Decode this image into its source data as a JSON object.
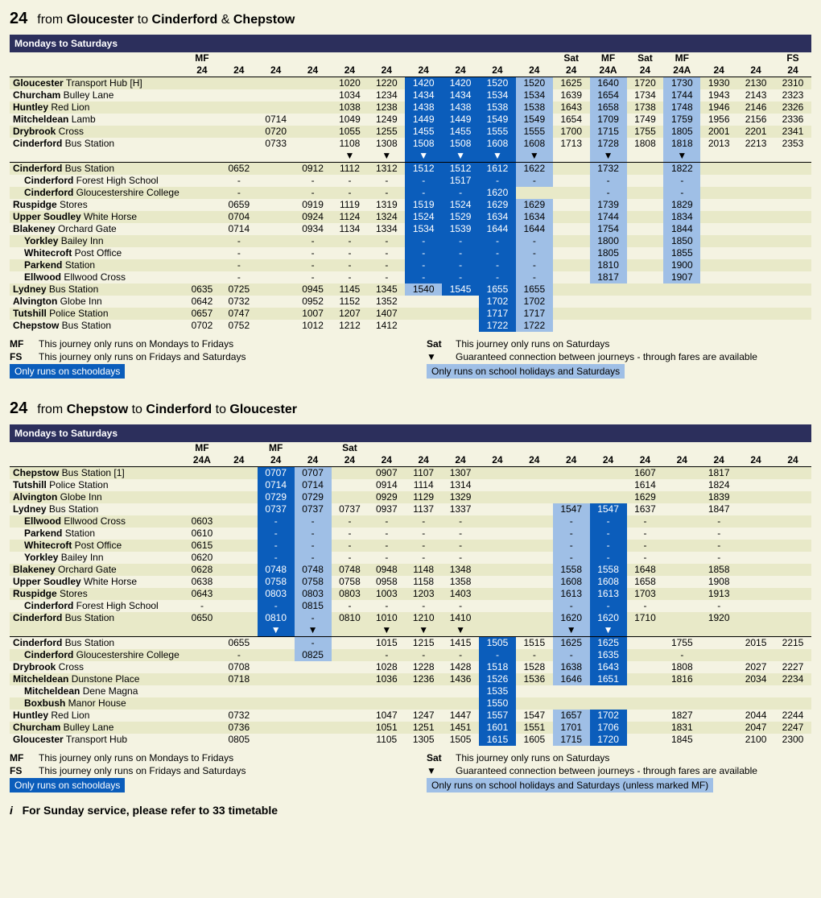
{
  "colors": {
    "bg": "#f4f3e2",
    "banner": "#2c2f5c",
    "stripe": "#e8e9c8",
    "school": "#0b5dbb",
    "hol": "#9fbfe6"
  },
  "section1": {
    "route": "24",
    "title_parts": [
      "from ",
      "Gloucester",
      " to ",
      "Cinderford",
      " & ",
      "Chepstow"
    ],
    "banner": "Mondays to Saturdays",
    "ncols": 17,
    "header_note": [
      "MF",
      "",
      "",
      "",
      "",
      "",
      "",
      "",
      "",
      "",
      "Sat",
      "MF",
      "Sat",
      "MF",
      "",
      "",
      "FS"
    ],
    "header_svc": [
      "24",
      "24",
      "24",
      "24",
      "24",
      "24",
      "24",
      "24",
      "24",
      "24",
      "24",
      "24A",
      "24",
      "24A",
      "24",
      "24",
      "24"
    ],
    "hl_cols": {
      "school": [
        6,
        7,
        8
      ],
      "hol": [
        9,
        11,
        13
      ]
    },
    "rows": [
      {
        "stop": [
          "Gloucester",
          " Transport Hub [H]"
        ],
        "t": [
          "",
          "",
          "",
          "",
          "1020",
          "1220",
          "1420",
          "1420",
          "1520",
          "1520",
          "1625",
          "1640",
          "1720",
          "1730",
          "1930",
          "2130",
          "2310"
        ]
      },
      {
        "stop": [
          "Churcham",
          " Bulley Lane"
        ],
        "t": [
          "",
          "",
          "",
          "",
          "1034",
          "1234",
          "1434",
          "1434",
          "1534",
          "1534",
          "1639",
          "1654",
          "1734",
          "1744",
          "1943",
          "2143",
          "2323"
        ]
      },
      {
        "stop": [
          "Huntley",
          " Red Lion"
        ],
        "t": [
          "",
          "",
          "",
          "",
          "1038",
          "1238",
          "1438",
          "1438",
          "1538",
          "1538",
          "1643",
          "1658",
          "1738",
          "1748",
          "1946",
          "2146",
          "2326"
        ]
      },
      {
        "stop": [
          "Mitcheldean",
          " Lamb"
        ],
        "t": [
          "",
          "",
          "0714",
          "",
          "1049",
          "1249",
          "1449",
          "1449",
          "1549",
          "1549",
          "1654",
          "1709",
          "1749",
          "1759",
          "1956",
          "2156",
          "2336"
        ]
      },
      {
        "stop": [
          "Drybrook",
          " Cross"
        ],
        "t": [
          "",
          "",
          "0720",
          "",
          "1055",
          "1255",
          "1455",
          "1455",
          "1555",
          "1555",
          "1700",
          "1715",
          "1755",
          "1805",
          "2001",
          "2201",
          "2341"
        ]
      },
      {
        "stop": [
          "Cinderford",
          " Bus Station"
        ],
        "t": [
          "",
          "",
          "0733",
          "",
          "1108",
          "1308",
          "1508",
          "1508",
          "1608",
          "1608",
          "1713",
          "1728",
          "1808",
          "1818",
          "2013",
          "2213",
          "2353"
        ]
      },
      {
        "arrows": true,
        "cols": [
          4,
          5,
          6,
          7,
          8,
          9,
          11,
          13
        ]
      },
      {
        "hr": true
      },
      {
        "stop": [
          "Cinderford",
          " Bus Station"
        ],
        "t": [
          "",
          "0652",
          "",
          "0912",
          "1112",
          "1312",
          "1512",
          "1512",
          "1612",
          "1622",
          "",
          "1732",
          "",
          "1822",
          "",
          "",
          ""
        ]
      },
      {
        "stop": [
          "Cinderford",
          " Forest High School"
        ],
        "indent": 1,
        "t": [
          "",
          "-",
          "",
          "-",
          "-",
          "-",
          "-",
          "1517",
          "-",
          "-",
          "",
          "-",
          "",
          "-",
          "",
          "",
          ""
        ]
      },
      {
        "stop": [
          "Cinderford",
          " Gloucestershire College"
        ],
        "indent": 1,
        "t": [
          "",
          "-",
          "",
          "-",
          "-",
          "-",
          "-",
          "-",
          "1620",
          "",
          "",
          "-",
          "",
          "-",
          "",
          "",
          ""
        ]
      },
      {
        "stop": [
          "Ruspidge",
          " Stores"
        ],
        "t": [
          "",
          "0659",
          "",
          "0919",
          "1119",
          "1319",
          "1519",
          "1524",
          "1629",
          "1629",
          "",
          "1739",
          "",
          "1829",
          "",
          "",
          ""
        ]
      },
      {
        "stop": [
          "Upper Soudley",
          " White Horse"
        ],
        "t": [
          "",
          "0704",
          "",
          "0924",
          "1124",
          "1324",
          "1524",
          "1529",
          "1634",
          "1634",
          "",
          "1744",
          "",
          "1834",
          "",
          "",
          ""
        ]
      },
      {
        "stop": [
          "Blakeney",
          " Orchard Gate"
        ],
        "t": [
          "",
          "0714",
          "",
          "0934",
          "1134",
          "1334",
          "1534",
          "1539",
          "1644",
          "1644",
          "",
          "1754",
          "",
          "1844",
          "",
          "",
          ""
        ]
      },
      {
        "stop": [
          "Yorkley",
          " Bailey Inn"
        ],
        "indent": 1,
        "t": [
          "",
          "-",
          "",
          "-",
          "-",
          "-",
          "-",
          "-",
          "-",
          "-",
          "",
          "1800",
          "",
          "1850",
          "",
          "",
          ""
        ]
      },
      {
        "stop": [
          "Whitecroft",
          " Post Office"
        ],
        "indent": 1,
        "t": [
          "",
          "-",
          "",
          "-",
          "-",
          "-",
          "-",
          "-",
          "-",
          "-",
          "",
          "1805",
          "",
          "1855",
          "",
          "",
          ""
        ]
      },
      {
        "stop": [
          "Parkend",
          " Station"
        ],
        "indent": 1,
        "t": [
          "",
          "-",
          "",
          "-",
          "-",
          "-",
          "-",
          "-",
          "-",
          "-",
          "",
          "1810",
          "",
          "1900",
          "",
          "",
          ""
        ]
      },
      {
        "stop": [
          "Ellwood",
          " Ellwood Cross"
        ],
        "indent": 1,
        "t": [
          "",
          "-",
          "",
          "-",
          "-",
          "-",
          "-",
          "-",
          "-",
          "-",
          "",
          "1817",
          "",
          "1907",
          "",
          "",
          ""
        ]
      },
      {
        "stop": [
          "Lydney",
          " Bus Station"
        ],
        "t": [
          "0635",
          "0725",
          "",
          "0945",
          "1145",
          "1345",
          "1540",
          "1545",
          "1655",
          "1655",
          "",
          "",
          "",
          "",
          "",
          "",
          ""
        ],
        "hl_override": {
          "6": "hol"
        }
      },
      {
        "stop": [
          "Alvington",
          " Globe Inn"
        ],
        "t": [
          "0642",
          "0732",
          "",
          "0952",
          "1152",
          "1352",
          "",
          "",
          "1702",
          "1702",
          "",
          "",
          "",
          "",
          "",
          "",
          ""
        ]
      },
      {
        "stop": [
          "Tutshill",
          " Police Station"
        ],
        "t": [
          "0657",
          "0747",
          "",
          "1007",
          "1207",
          "1407",
          "",
          "",
          "1717",
          "1717",
          "",
          "",
          "",
          "",
          "",
          "",
          ""
        ]
      },
      {
        "stop": [
          "Chepstow",
          " Bus Station"
        ],
        "t": [
          "0702",
          "0752",
          "",
          "1012",
          "1212",
          "1412",
          "",
          "",
          "1722",
          "1722",
          "",
          "",
          "",
          "",
          "",
          "",
          ""
        ]
      }
    ]
  },
  "footnotes": {
    "left": [
      [
        "MF",
        "This journey only runs on Mondays to Fridays"
      ],
      [
        "FS",
        "This journey only runs on Fridays and Saturdays"
      ]
    ],
    "right": [
      [
        "Sat",
        "This journey only runs on Saturdays"
      ],
      [
        "▼",
        "Guaranteed connection between journeys - through fares are available"
      ]
    ],
    "chip_school": "Only runs on schooldays",
    "chip_hol": "Only runs on school holidays and Saturdays",
    "chip_hol2": "Only runs on school holidays and Saturdays (unless marked MF)"
  },
  "section2": {
    "route": "24",
    "title_parts": [
      "from ",
      "Chepstow",
      " to ",
      "Cinderford",
      " to ",
      "Gloucester"
    ],
    "banner": "Mondays to Saturdays",
    "ncols": 17,
    "header_note": [
      "MF",
      "",
      "MF",
      "",
      "Sat",
      "",
      "",
      "",
      "",
      "",
      "",
      "",
      "",
      "",
      "",
      "",
      ""
    ],
    "header_svc": [
      "24A",
      "24",
      "24",
      "24",
      "24",
      "24",
      "24",
      "24",
      "24",
      "24",
      "24",
      "24",
      "24",
      "24",
      "24",
      "24",
      "24"
    ],
    "hl_cols": {
      "school": [
        2,
        8,
        11
      ],
      "hol": [
        3,
        10
      ]
    },
    "rows": [
      {
        "stop": [
          "Chepstow",
          " Bus Station [1]"
        ],
        "t": [
          "",
          "",
          "0707",
          "0707",
          "",
          "0907",
          "1107",
          "1307",
          "",
          "",
          "",
          "",
          "1607",
          "",
          "1817",
          "",
          ""
        ]
      },
      {
        "stop": [
          "Tutshill",
          " Police Station"
        ],
        "t": [
          "",
          "",
          "0714",
          "0714",
          "",
          "0914",
          "1114",
          "1314",
          "",
          "",
          "",
          "",
          "1614",
          "",
          "1824",
          "",
          ""
        ]
      },
      {
        "stop": [
          "Alvington",
          " Globe Inn"
        ],
        "t": [
          "",
          "",
          "0729",
          "0729",
          "",
          "0929",
          "1129",
          "1329",
          "",
          "",
          "",
          "",
          "1629",
          "",
          "1839",
          "",
          ""
        ]
      },
      {
        "stop": [
          "Lydney",
          " Bus Station"
        ],
        "t": [
          "",
          "",
          "0737",
          "0737",
          "0737",
          "0937",
          "1137",
          "1337",
          "",
          "",
          "1547",
          "1547",
          "1637",
          "",
          "1847",
          "",
          ""
        ]
      },
      {
        "stop": [
          "Ellwood",
          " Ellwood Cross"
        ],
        "indent": 1,
        "t": [
          "0603",
          "",
          "-",
          "-",
          "-",
          "-",
          "-",
          "-",
          "",
          "",
          "-",
          "-",
          "-",
          "",
          "-",
          "",
          ""
        ]
      },
      {
        "stop": [
          "Parkend",
          " Station"
        ],
        "indent": 1,
        "t": [
          "0610",
          "",
          "-",
          "-",
          "-",
          "-",
          "-",
          "-",
          "",
          "",
          "-",
          "-",
          "-",
          "",
          "-",
          "",
          ""
        ]
      },
      {
        "stop": [
          "Whitecroft",
          " Post Office"
        ],
        "indent": 1,
        "t": [
          "0615",
          "",
          "-",
          "-",
          "-",
          "-",
          "-",
          "-",
          "",
          "",
          "-",
          "-",
          "-",
          "",
          "-",
          "",
          ""
        ]
      },
      {
        "stop": [
          "Yorkley",
          " Bailey Inn"
        ],
        "indent": 1,
        "t": [
          "0620",
          "",
          "-",
          "-",
          "-",
          "-",
          "-",
          "-",
          "",
          "",
          "-",
          "-",
          "-",
          "",
          "-",
          "",
          ""
        ]
      },
      {
        "stop": [
          "Blakeney",
          " Orchard Gate"
        ],
        "t": [
          "0628",
          "",
          "0748",
          "0748",
          "0748",
          "0948",
          "1148",
          "1348",
          "",
          "",
          "1558",
          "1558",
          "1648",
          "",
          "1858",
          "",
          ""
        ]
      },
      {
        "stop": [
          "Upper Soudley",
          " White Horse"
        ],
        "t": [
          "0638",
          "",
          "0758",
          "0758",
          "0758",
          "0958",
          "1158",
          "1358",
          "",
          "",
          "1608",
          "1608",
          "1658",
          "",
          "1908",
          "",
          ""
        ]
      },
      {
        "stop": [
          "Ruspidge",
          " Stores"
        ],
        "t": [
          "0643",
          "",
          "0803",
          "0803",
          "0803",
          "1003",
          "1203",
          "1403",
          "",
          "",
          "1613",
          "1613",
          "1703",
          "",
          "1913",
          "",
          ""
        ]
      },
      {
        "stop": [
          "Cinderford",
          " Forest High School"
        ],
        "indent": 1,
        "t": [
          "-",
          "",
          "-",
          "0815",
          "-",
          "-",
          "-",
          "-",
          "",
          "",
          "-",
          "-",
          "-",
          "",
          "-",
          "",
          ""
        ]
      },
      {
        "stop": [
          "Cinderford",
          " Bus Station"
        ],
        "t": [
          "0650",
          "",
          "0810",
          "-",
          "0810",
          "1010",
          "1210",
          "1410",
          "",
          "",
          "1620",
          "1620",
          "1710",
          "",
          "1920",
          "",
          ""
        ]
      },
      {
        "arrows": true,
        "cols": [
          2,
          3,
          5,
          6,
          7,
          10,
          11
        ]
      },
      {
        "hr": true
      },
      {
        "stop": [
          "Cinderford",
          " Bus Station"
        ],
        "t": [
          "",
          "0655",
          "",
          "-",
          "",
          "1015",
          "1215",
          "1415",
          "1505",
          "1515",
          "1625",
          "1625",
          "",
          "1755",
          "",
          "2015",
          "2215"
        ]
      },
      {
        "stop": [
          "Cinderford",
          " Gloucestershire College"
        ],
        "indent": 1,
        "t": [
          "",
          "-",
          "",
          "0825",
          "",
          "-",
          "-",
          "-",
          "-",
          "-",
          "-",
          "1635",
          "",
          "-",
          "",
          "",
          ""
        ]
      },
      {
        "stop": [
          "Drybrook",
          " Cross"
        ],
        "t": [
          "",
          "0708",
          "",
          "",
          "",
          "1028",
          "1228",
          "1428",
          "1518",
          "1528",
          "1638",
          "1643",
          "",
          "1808",
          "",
          "2027",
          "2227"
        ]
      },
      {
        "stop": [
          "Mitcheldean",
          " Dunstone Place"
        ],
        "t": [
          "",
          "0718",
          "",
          "",
          "",
          "1036",
          "1236",
          "1436",
          "1526",
          "1536",
          "1646",
          "1651",
          "",
          "1816",
          "",
          "2034",
          "2234"
        ]
      },
      {
        "stop": [
          "Mitcheldean",
          " Dene Magna"
        ],
        "indent": 1,
        "t": [
          "",
          "",
          "",
          "",
          "",
          "",
          "",
          "",
          "1535",
          "",
          "",
          "",
          "",
          "",
          "",
          "",
          ""
        ]
      },
      {
        "stop": [
          "Boxbush",
          " Manor House"
        ],
        "indent": 1,
        "t": [
          "",
          "",
          "",
          "",
          "",
          "",
          "",
          "",
          "1550",
          "",
          "",
          "",
          "",
          "",
          "",
          "",
          ""
        ]
      },
      {
        "stop": [
          "Huntley",
          " Red Lion"
        ],
        "t": [
          "",
          "0732",
          "",
          "",
          "",
          "1047",
          "1247",
          "1447",
          "1557",
          "1547",
          "1657",
          "1702",
          "",
          "1827",
          "",
          "2044",
          "2244"
        ]
      },
      {
        "stop": [
          "Churcham",
          " Bulley Lane"
        ],
        "t": [
          "",
          "0736",
          "",
          "",
          "",
          "1051",
          "1251",
          "1451",
          "1601",
          "1551",
          "1701",
          "1706",
          "",
          "1831",
          "",
          "2047",
          "2247"
        ]
      },
      {
        "stop": [
          "Gloucester",
          " Transport Hub"
        ],
        "t": [
          "",
          "0805",
          "",
          "",
          "",
          "1105",
          "1305",
          "1505",
          "1615",
          "1605",
          "1715",
          "1720",
          "",
          "1845",
          "",
          "2100",
          "2300"
        ]
      }
    ]
  },
  "sunday": {
    "i": "i",
    "text": "For Sunday service, please refer to 33 timetable"
  }
}
